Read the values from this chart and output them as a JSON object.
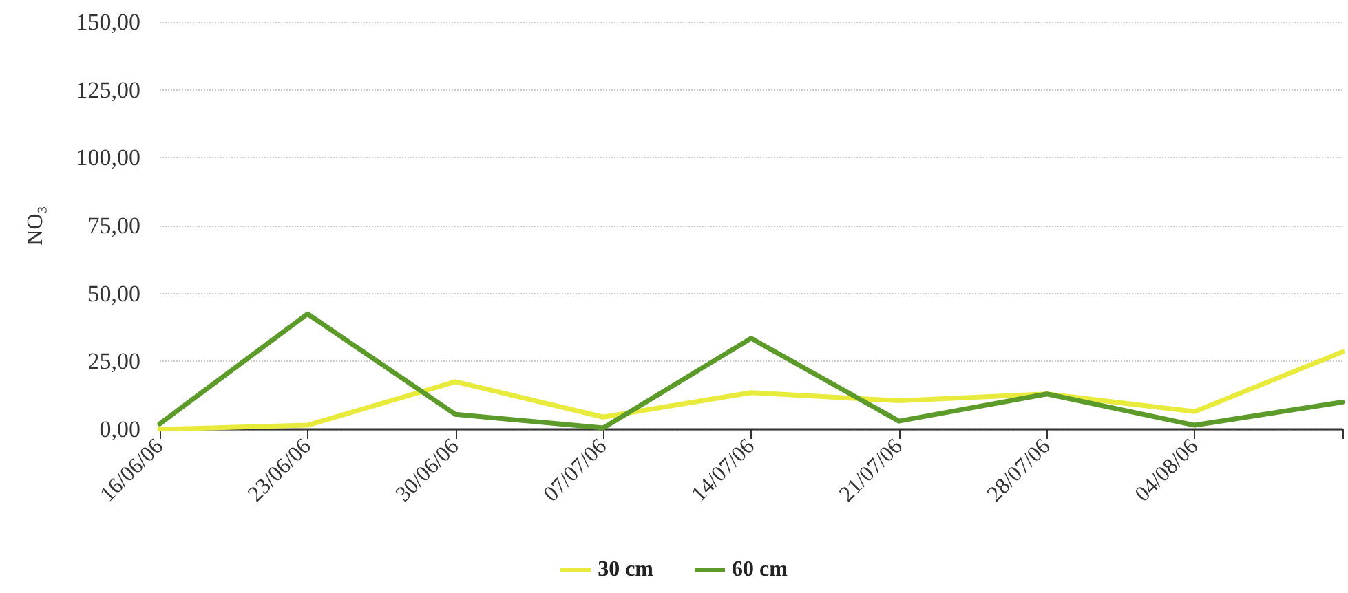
{
  "chart_data": {
    "type": "line",
    "ylabel": "NO₃",
    "categories": [
      "16/06/06",
      "23/06/06",
      "30/06/06",
      "07/07/06",
      "14/07/06",
      "21/07/06",
      "28/07/06",
      "04/08/06",
      null
    ],
    "series": [
      {
        "name": "30 cm",
        "color": "#e8ea3c",
        "values": [
          0,
          1.5,
          17.5,
          4.5,
          13.5,
          10.5,
          13,
          6.5,
          28.5
        ]
      },
      {
        "name": "60 cm",
        "color": "#5c9a2a",
        "values": [
          2,
          42.5,
          5.5,
          0.5,
          33.5,
          3,
          13,
          1.5,
          10
        ]
      }
    ],
    "ylim": [
      0,
      150
    ],
    "yticks": [
      {
        "value": 0,
        "label": "0,00"
      },
      {
        "value": 25,
        "label": "25,00"
      },
      {
        "value": 50,
        "label": "50,00"
      },
      {
        "value": 75,
        "label": "75,00"
      },
      {
        "value": 100,
        "label": "100,00"
      },
      {
        "value": 125,
        "label": "125,00"
      },
      {
        "value": 150,
        "label": "150,00"
      }
    ],
    "grid": "y",
    "legend": "bottom",
    "marker": "none",
    "line_style": "solid"
  }
}
